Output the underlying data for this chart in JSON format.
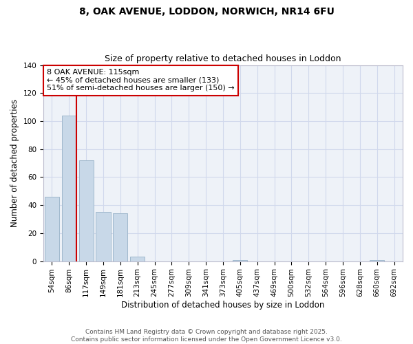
{
  "title": "8, OAK AVENUE, LODDON, NORWICH, NR14 6FU",
  "subtitle": "Size of property relative to detached houses in Loddon",
  "xlabel": "Distribution of detached houses by size in Loddon",
  "ylabel": "Number of detached properties",
  "bins": [
    "54sqm",
    "86sqm",
    "117sqm",
    "149sqm",
    "181sqm",
    "213sqm",
    "245sqm",
    "277sqm",
    "309sqm",
    "341sqm",
    "373sqm",
    "405sqm",
    "437sqm",
    "469sqm",
    "500sqm",
    "532sqm",
    "564sqm",
    "596sqm",
    "628sqm",
    "660sqm",
    "692sqm"
  ],
  "values": [
    46,
    104,
    72,
    35,
    34,
    3,
    0,
    0,
    0,
    0,
    0,
    1,
    0,
    0,
    0,
    0,
    0,
    0,
    0,
    1,
    0
  ],
  "bar_color": "#c8d8e8",
  "bar_edge_color": "#a0b8cc",
  "red_line_color": "#cc0000",
  "red_line_index": 1,
  "ylim": [
    0,
    140
  ],
  "annotation_text": "8 OAK AVENUE: 115sqm\n← 45% of detached houses are smaller (133)\n51% of semi-detached houses are larger (150) →",
  "annotation_box_color": "#ffffff",
  "annotation_box_edge_color": "#cc0000",
  "footer_line1": "Contains HM Land Registry data © Crown copyright and database right 2025.",
  "footer_line2": "Contains public sector information licensed under the Open Government Licence v3.0.",
  "title_fontsize": 10,
  "subtitle_fontsize": 9,
  "axis_label_fontsize": 8.5,
  "tick_fontsize": 7.5,
  "annotation_fontsize": 8,
  "footer_fontsize": 6.5,
  "grid_color": "#d0d8ec",
  "background_color": "#eef2f8"
}
